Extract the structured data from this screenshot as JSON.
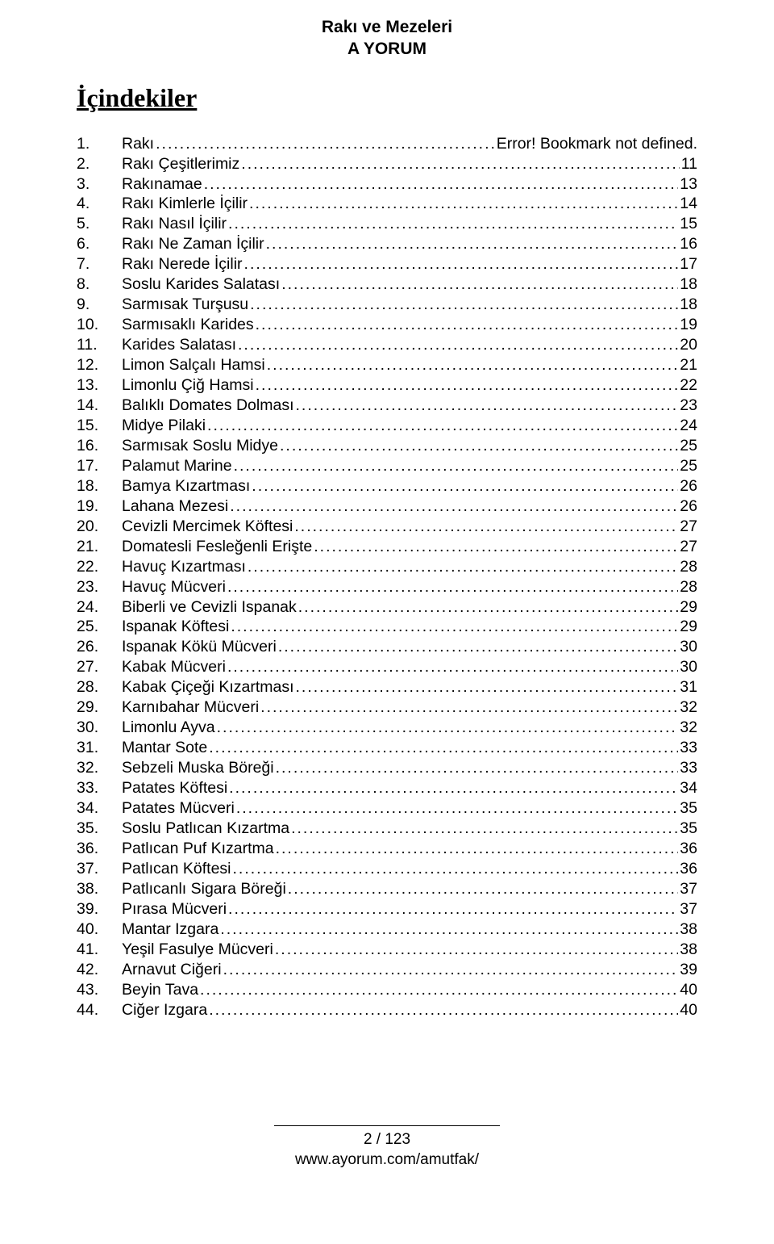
{
  "header": {
    "line1": "Rakı ve Mezeleri",
    "line2": "A YORUM"
  },
  "toc_heading": "İçindekiler",
  "leader_char": ".",
  "toc_items": [
    {
      "num": "1.",
      "title": "Rakı",
      "page": "Error! Bookmark not defined."
    },
    {
      "num": "2.",
      "title": "Rakı Çeşitlerimiz",
      "page": "11"
    },
    {
      "num": "3.",
      "title": "Rakınamae",
      "page": "13"
    },
    {
      "num": "4.",
      "title": "Rakı Kimlerle İçilir",
      "page": "14"
    },
    {
      "num": "5.",
      "title": "Rakı Nasıl İçilir",
      "page": "15"
    },
    {
      "num": "6.",
      "title": "Rakı Ne Zaman İçilir",
      "page": "16"
    },
    {
      "num": "7.",
      "title": "Rakı Nerede İçilir",
      "page": "17"
    },
    {
      "num": "8.",
      "title": "Soslu Karides Salatası",
      "page": "18"
    },
    {
      "num": "9.",
      "title": "Sarmısak Turşusu",
      "page": "18"
    },
    {
      "num": "10.",
      "title": "Sarmısaklı Karides",
      "page": "19"
    },
    {
      "num": "11.",
      "title": "Karides Salatası",
      "page": "20"
    },
    {
      "num": "12.",
      "title": "Limon Salçalı Hamsi",
      "page": "21"
    },
    {
      "num": "13.",
      "title": "Limonlu Çiğ Hamsi",
      "page": "22"
    },
    {
      "num": "14.",
      "title": "Balıklı Domates Dolması",
      "page": "23"
    },
    {
      "num": "15.",
      "title": "Midye Pilaki",
      "page": "24"
    },
    {
      "num": "16.",
      "title": "Sarmısak Soslu Midye",
      "page": "25"
    },
    {
      "num": "17.",
      "title": "Palamut Marine",
      "page": "25"
    },
    {
      "num": "18.",
      "title": "Bamya Kızartması",
      "page": "26"
    },
    {
      "num": "19.",
      "title": "Lahana Mezesi",
      "page": "26"
    },
    {
      "num": "20.",
      "title": "Cevizli Mercimek Köftesi",
      "page": "27"
    },
    {
      "num": "21.",
      "title": "Domatesli Fesleğenli Erişte",
      "page": "27"
    },
    {
      "num": "22.",
      "title": "Havuç Kızartması",
      "page": "28"
    },
    {
      "num": "23.",
      "title": "Havuç Mücveri",
      "page": "28"
    },
    {
      "num": "24.",
      "title": "Biberli ve Cevizli Ispanak",
      "page": "29"
    },
    {
      "num": "25.",
      "title": "Ispanak Köftesi",
      "page": "29"
    },
    {
      "num": "26.",
      "title": "Ispanak Kökü Mücveri",
      "page": "30"
    },
    {
      "num": "27.",
      "title": "Kabak Mücveri",
      "page": "30"
    },
    {
      "num": "28.",
      "title": "Kabak Çiçeği Kızartması",
      "page": "31"
    },
    {
      "num": "29.",
      "title": "Karnıbahar Mücveri",
      "page": "32"
    },
    {
      "num": "30.",
      "title": "Limonlu Ayva",
      "page": "32"
    },
    {
      "num": "31.",
      "title": "Mantar Sote",
      "page": "33"
    },
    {
      "num": "32.",
      "title": "Sebzeli Muska Böreği",
      "page": "33"
    },
    {
      "num": "33.",
      "title": "Patates Köftesi",
      "page": "34"
    },
    {
      "num": "34.",
      "title": "Patates Mücveri",
      "page": "35"
    },
    {
      "num": "35.",
      "title": "Soslu Patlıcan Kızartma",
      "page": "35"
    },
    {
      "num": "36.",
      "title": "Patlıcan Puf Kızartma",
      "page": "36"
    },
    {
      "num": "37.",
      "title": "Patlıcan Köftesi",
      "page": "36"
    },
    {
      "num": "38.",
      "title": "Patlıcanlı Sigara Böreği",
      "page": "37"
    },
    {
      "num": "39.",
      "title": "Pırasa Mücveri",
      "page": "37"
    },
    {
      "num": "40.",
      "title": "Mantar Izgara",
      "page": "38"
    },
    {
      "num": "41.",
      "title": "Yeşil Fasulye Mücveri",
      "page": "38"
    },
    {
      "num": "42.",
      "title": "Arnavut Ciğeri",
      "page": "39"
    },
    {
      "num": "43.",
      "title": "Beyin Tava",
      "page": "40"
    },
    {
      "num": "44.",
      "title": "Ciğer Izgara",
      "page": "40"
    }
  ],
  "footer": {
    "page_info": "2 / 123",
    "url": "www.ayorum.com/amutfak/"
  }
}
